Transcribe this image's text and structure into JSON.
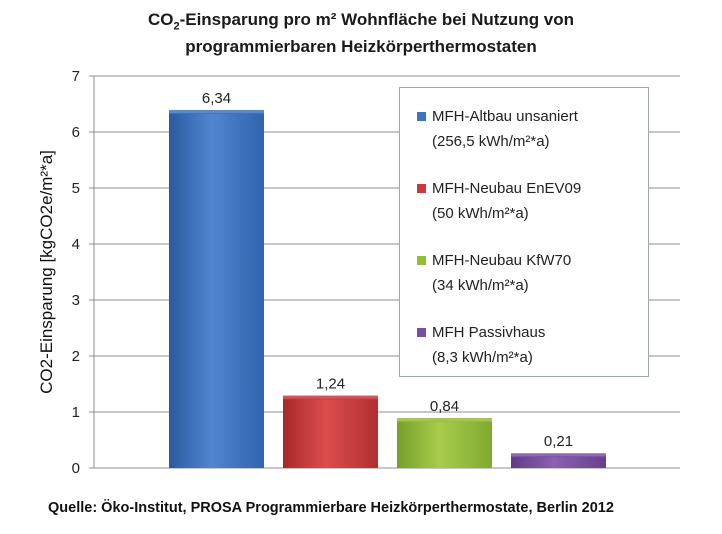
{
  "title": {
    "line1_pre": "CO",
    "line1_sub": "2",
    "line1_post": "-Einsparung pro m² Wohnfläche bei Nutzung von",
    "line2": "programmierbaren Heizkörperthermostaten"
  },
  "source": "Quelle: Öko-Institut, PROSA Programmierbare Heizkörperthermostate, Berlin 2012",
  "colors": {
    "bars": [
      "#3f74bd",
      "#c93a3a",
      "#95bb3a",
      "#7a4fa0"
    ]
  },
  "chart_data": {
    "type": "bar",
    "title": "CO2-Einsparung pro m² Wohnfläche bei Nutzung von programmierbaren Heizkörperthermostaten",
    "ylabel": "CO2-Einsparung [kgCO2e/m²*a]",
    "xlabel": "",
    "ylim": [
      0,
      7
    ],
    "yticks": [
      "0",
      "1",
      "2",
      "3",
      "4",
      "5",
      "6",
      "7"
    ],
    "grid": true,
    "legend_position": "right",
    "series": [
      {
        "name_line1": "MFH-Altbau unsaniert",
        "name_line2": "(256,5 kWh/m²*a)",
        "value": 6.34,
        "label": "6,34"
      },
      {
        "name_line1": "MFH-Neubau EnEV09",
        "name_line2": "(50 kWh/m²*a)",
        "value": 1.24,
        "label": "1,24"
      },
      {
        "name_line1": "MFH-Neubau KfW70",
        "name_line2": "(34 kWh/m²*a)",
        "value": 0.84,
        "label": "0,84"
      },
      {
        "name_line1": "MFH Passivhaus",
        "name_line2": "(8,3 kWh/m²*a)",
        "value": 0.21,
        "label": "0,21"
      }
    ]
  }
}
